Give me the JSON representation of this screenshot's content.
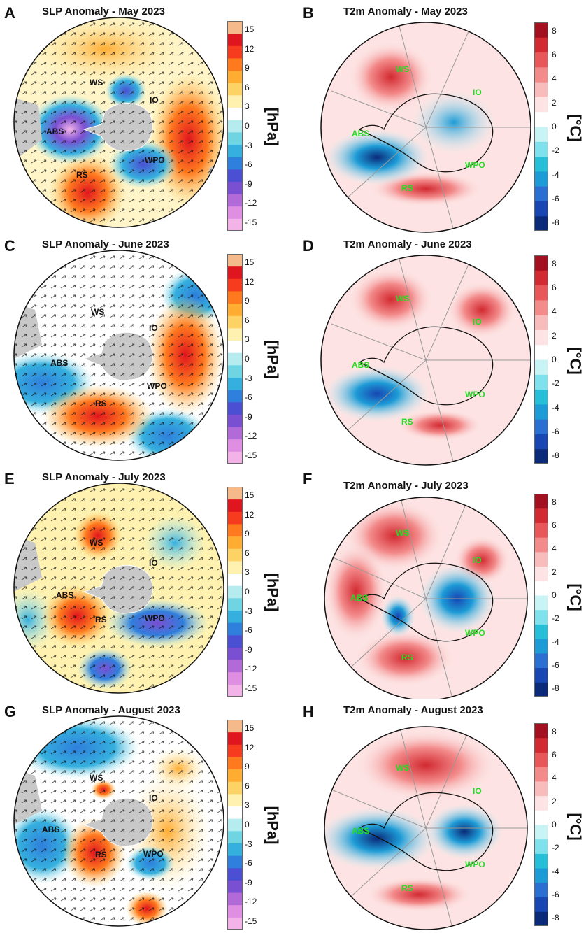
{
  "colors": {
    "slp_scale": [
      "#f3b3e8",
      "#df8ee3",
      "#b26ad9",
      "#7b4fd1",
      "#4b4fd3",
      "#2f7fdc",
      "#35b0de",
      "#6fd5e2",
      "#b5ecef",
      "#ffffff",
      "#fff2b0",
      "#ffd266",
      "#ffac33",
      "#ff7a1f",
      "#f63b1f",
      "#e0161e",
      "#f6b98a"
    ],
    "t2m_scale": [
      "#0b2a7a",
      "#1846b2",
      "#2a6fd1",
      "#1d9bd6",
      "#27bfd8",
      "#7fe1eb",
      "#c8f4f6",
      "#ffffff",
      "#fde3e3",
      "#f9bcbc",
      "#f38b8b",
      "#e8585a",
      "#d22a31",
      "#a3101f"
    ],
    "land": "#c8c8c8",
    "region_slp": "#111111",
    "region_t2m": "#22dd22"
  },
  "slp_ticks": [
    "15",
    "12",
    "9",
    "6",
    "3",
    "0",
    "-3",
    "-6",
    "-9",
    "-12",
    "-15"
  ],
  "t2m_ticks": [
    "8",
    "6",
    "4",
    "2",
    "0",
    "-2",
    "-4",
    "-6",
    "-8"
  ],
  "slp_unit": "[hPa]",
  "t2m_unit": "[°C]",
  "regions": {
    "ws": "WS",
    "io": "IO",
    "abs": "ABS",
    "wpo": "WPO",
    "rs": "RS"
  },
  "panels": [
    {
      "letter": "A",
      "title": "SLP Anomaly - May 2023"
    },
    {
      "letter": "B",
      "title": "T2m Anomaly - May 2023"
    },
    {
      "letter": "C",
      "title": "SLP Anomaly - June 2023"
    },
    {
      "letter": "D",
      "title": "T2m Anomaly - June 2023"
    },
    {
      "letter": "E",
      "title": "SLP Anomaly - July 2023"
    },
    {
      "letter": "F",
      "title": "T2m Anomaly - July 2023"
    },
    {
      "letter": "G",
      "title": "SLP Anomaly - August 2023"
    },
    {
      "letter": "H",
      "title": "T2m Anomaly - August 2023"
    }
  ]
}
